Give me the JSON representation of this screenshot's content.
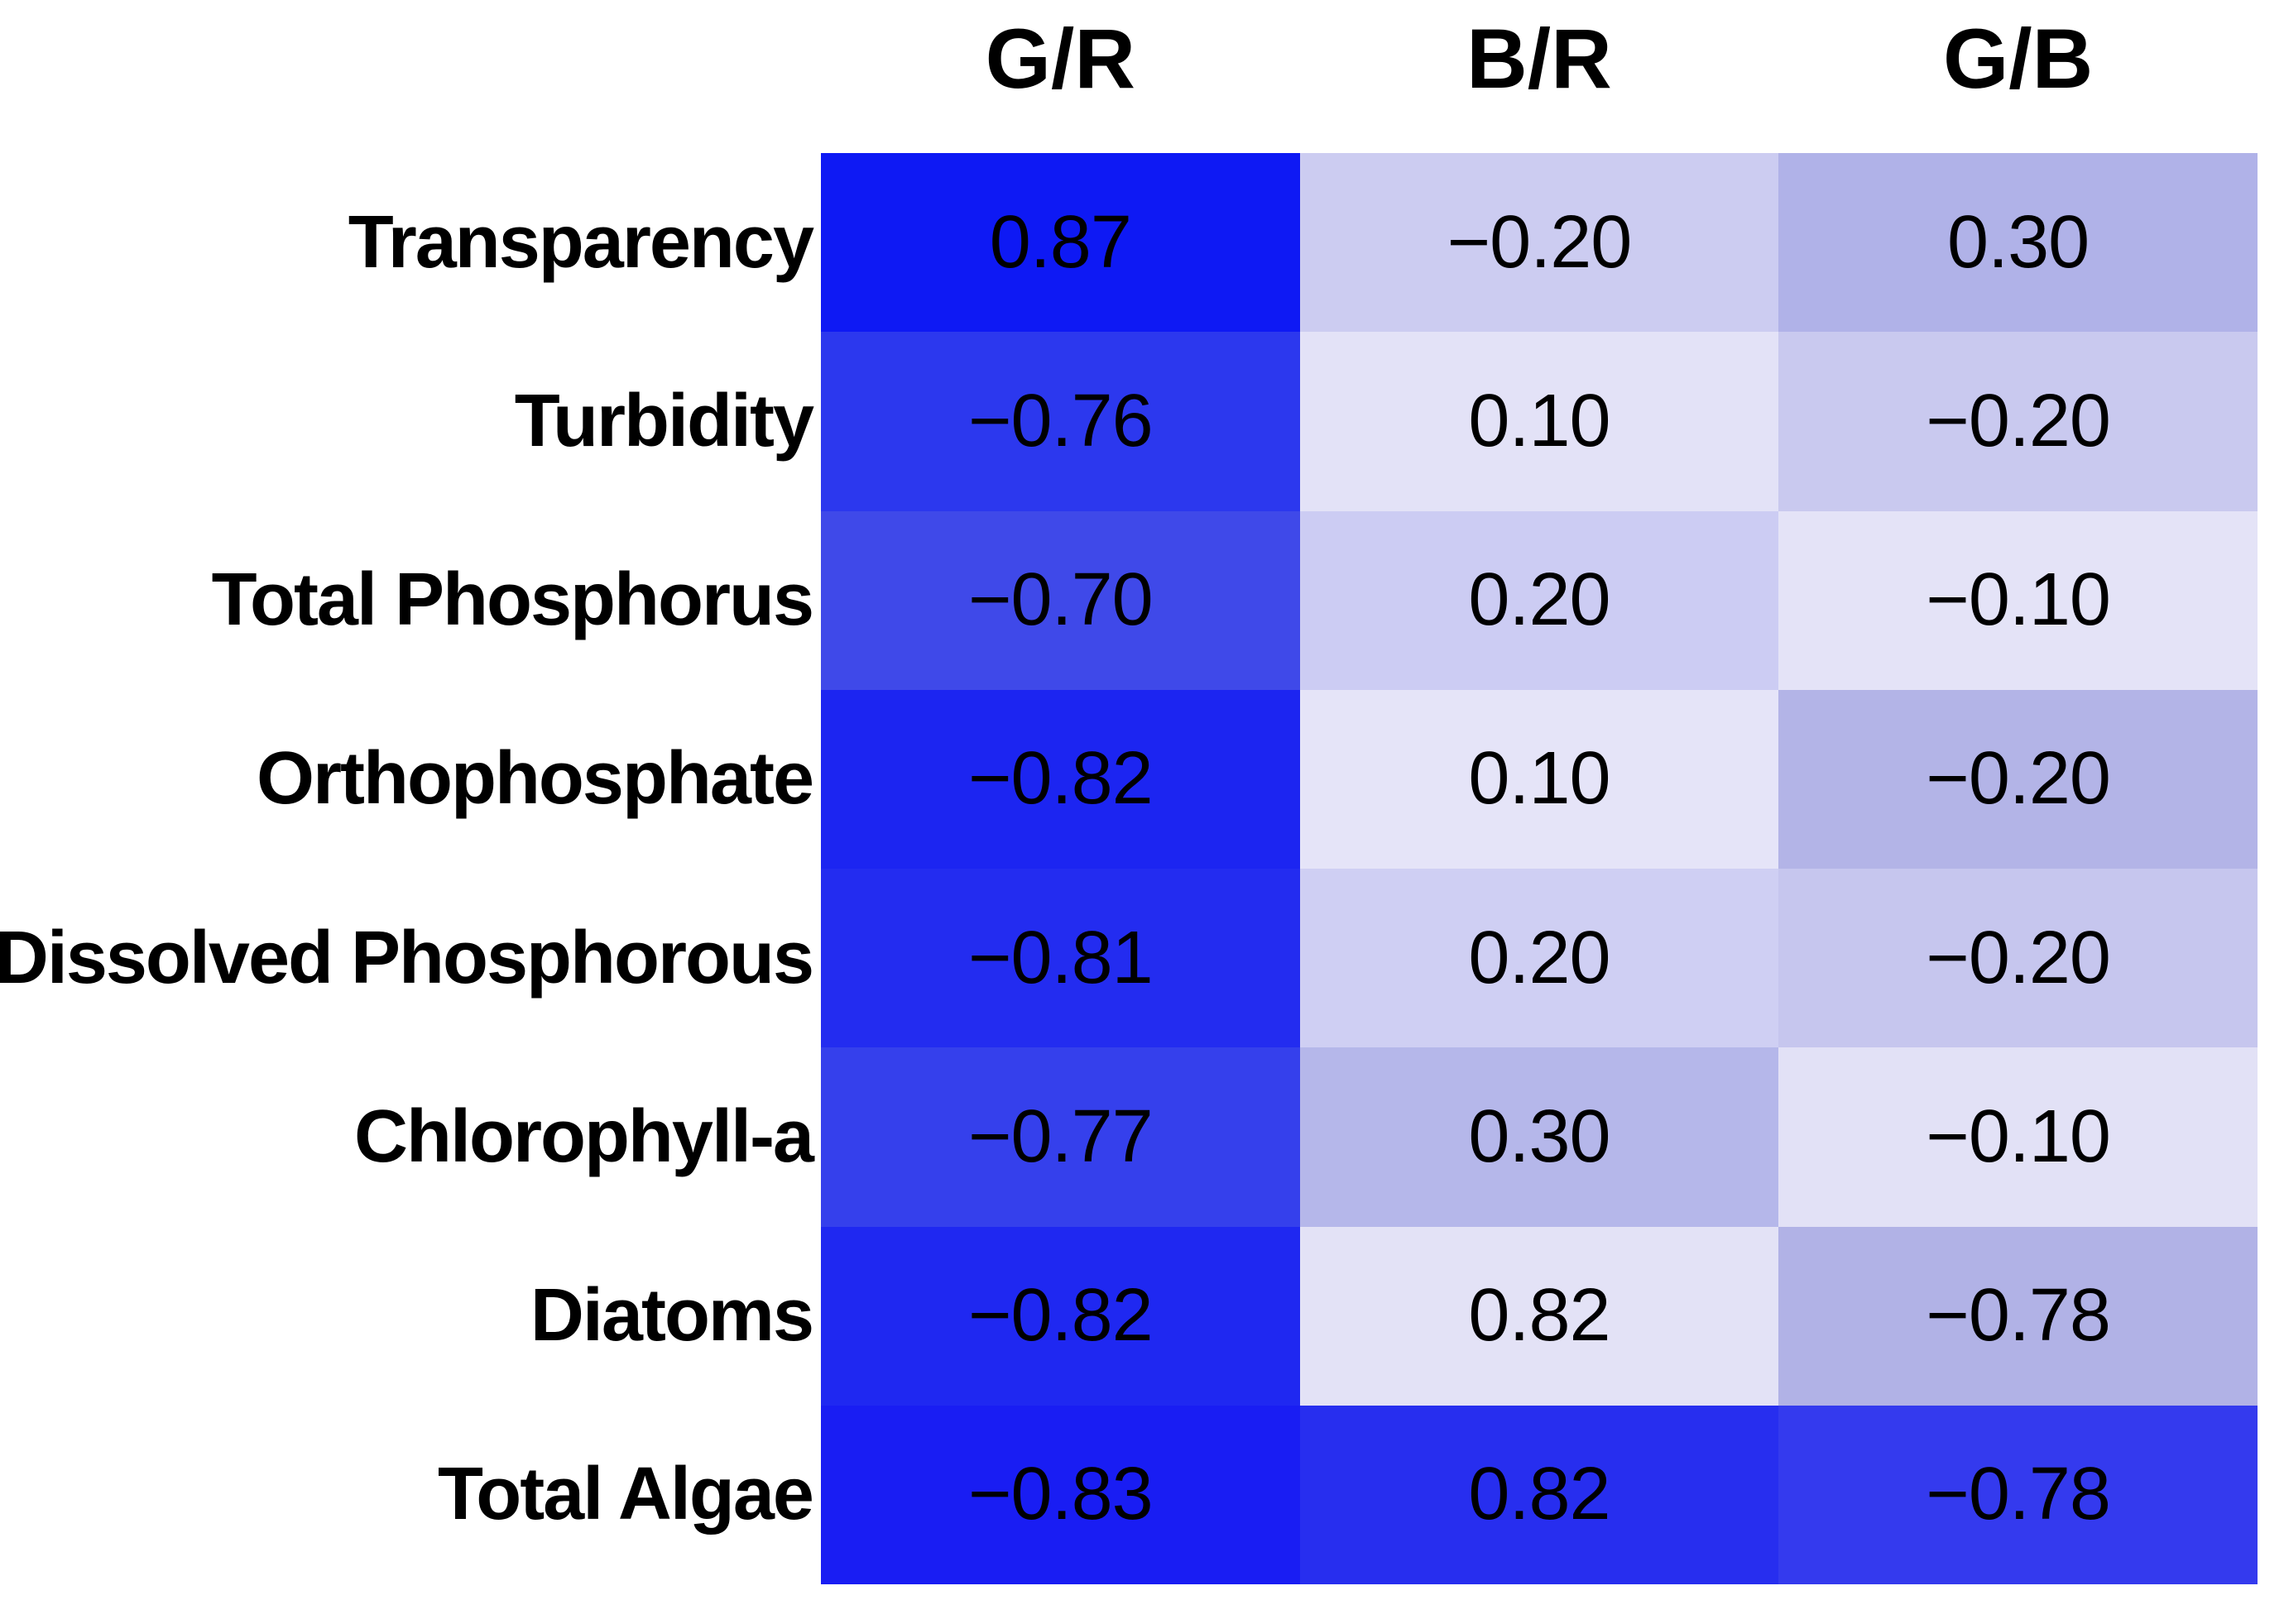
{
  "page": {
    "background": "#ffffff",
    "figure_kind": "correlation-heatmap"
  },
  "chart_data": {
    "type": "heatmap",
    "title": "",
    "xlabel": "",
    "ylabel": "",
    "legend": "none",
    "grid": false,
    "columns": [
      "G/R",
      "B/R",
      "G/B"
    ],
    "rows": [
      "Transparency",
      "Turbidity",
      "Total Phosphorus",
      "Orthophosphate",
      "Dissolved Phosphorous",
      "Chlorophyll-a",
      "Diatoms",
      "Total Algae"
    ],
    "values": [
      [
        0.87,
        -0.2,
        0.3
      ],
      [
        -0.76,
        0.1,
        -0.2
      ],
      [
        -0.7,
        0.2,
        -0.1
      ],
      [
        -0.82,
        0.1,
        -0.2
      ],
      [
        -0.81,
        0.2,
        -0.2
      ],
      [
        -0.77,
        0.3,
        -0.1
      ],
      [
        -0.82,
        0.82,
        -0.78
      ],
      [
        -0.83,
        0.82,
        -0.78
      ]
    ],
    "value_labels": [
      [
        "0.87",
        "−0.20",
        "0.30"
      ],
      [
        "−0.76",
        "0.10",
        "−0.20"
      ],
      [
        "−0.70",
        "0.20",
        "−0.10"
      ],
      [
        "−0.82",
        "0.10",
        "−0.20"
      ],
      [
        "−0.81",
        "0.20",
        "−0.20"
      ],
      [
        "−0.77",
        "0.30",
        "−0.10"
      ],
      [
        "−0.82",
        "0.82",
        "−0.78"
      ],
      [
        "−0.83",
        "0.82",
        "−0.78"
      ]
    ],
    "cell_colors": [
      [
        "#0e19f4",
        "#ccccf1",
        "#b0b2e8"
      ],
      [
        "#2c38ee",
        "#e3e2f7",
        "#c9c9ef"
      ],
      [
        "#3f49e9",
        "#ccccf3",
        "#e4e3f7"
      ],
      [
        "#1c25f1",
        "#e5e4f8",
        "#b3b4e7"
      ],
      [
        "#232cf0",
        "#cfcff3",
        "#c6c6ee"
      ],
      [
        "#3540ec",
        "#b5b7ea",
        "#e2e1f6"
      ],
      [
        "#1f28f1",
        "#e3e2f6",
        "#b1b2e6"
      ],
      [
        "#191df3",
        "#272eef",
        "#343aee"
      ]
    ],
    "text_color": "#000000"
  }
}
